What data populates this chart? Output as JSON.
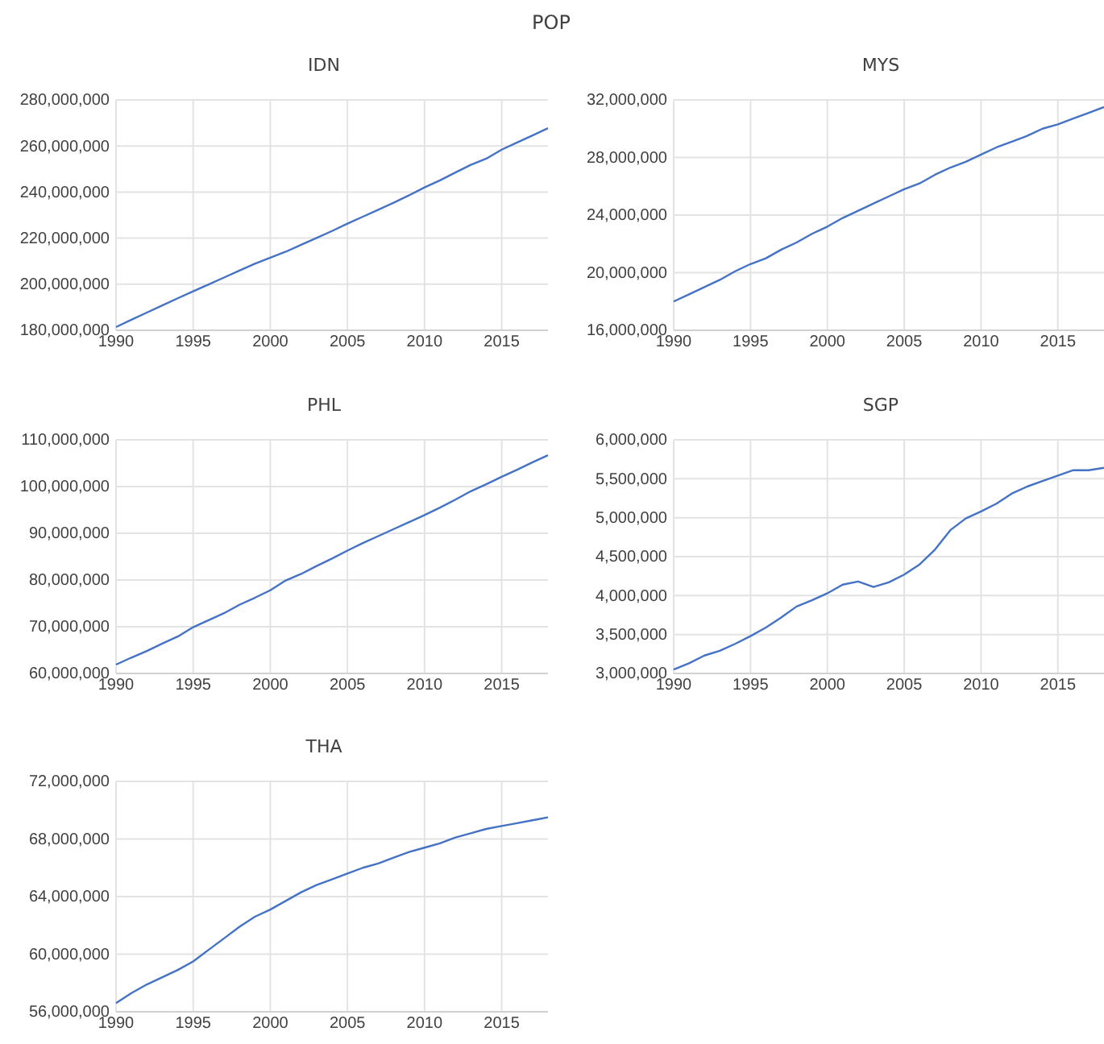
{
  "chart_data": [
    {
      "type": "other",
      "title": "POP"
    },
    {
      "type": "line",
      "title": "IDN",
      "x": [
        1990,
        1991,
        1992,
        1993,
        1994,
        1995,
        1996,
        1997,
        1998,
        1999,
        2000,
        2001,
        2002,
        2003,
        2004,
        2005,
        2006,
        2007,
        2008,
        2009,
        2010,
        2011,
        2012,
        2013,
        2014,
        2015,
        2016,
        2017,
        2018
      ],
      "xlim": [
        1990,
        2018
      ],
      "xticks": [
        1990,
        1995,
        2000,
        2005,
        2010,
        2015
      ],
      "ylim": [
        180000000,
        280000000
      ],
      "yticks": [
        {
          "value": 180000000,
          "label": "180,000,000"
        },
        {
          "value": 200000000,
          "label": "200,000,000"
        },
        {
          "value": 220000000,
          "label": "220,000,000"
        },
        {
          "value": 240000000,
          "label": "240,000,000"
        },
        {
          "value": 260000000,
          "label": "260,000,000"
        },
        {
          "value": 280000000,
          "label": "280,000,000"
        }
      ],
      "grid": true,
      "series": [
        {
          "color": "#4472c4",
          "values": [
            181400000,
            184600000,
            187700000,
            190800000,
            193900000,
            196900000,
            199900000,
            202900000,
            205900000,
            208900000,
            211500000,
            214100000,
            217100000,
            220100000,
            223100000,
            226300000,
            229300000,
            232300000,
            235400000,
            238600000,
            242000000,
            245100000,
            248500000,
            251800000,
            254500000,
            258400000,
            261500000,
            264600000,
            267700000
          ]
        }
      ]
    },
    {
      "type": "line",
      "title": "MYS",
      "x": [
        1990,
        1991,
        1992,
        1993,
        1994,
        1995,
        1996,
        1997,
        1998,
        1999,
        2000,
        2001,
        2002,
        2003,
        2004,
        2005,
        2006,
        2007,
        2008,
        2009,
        2010,
        2011,
        2012,
        2013,
        2014,
        2015,
        2016,
        2017,
        2018
      ],
      "xlim": [
        1990,
        2018
      ],
      "xticks": [
        1990,
        1995,
        2000,
        2005,
        2010,
        2015
      ],
      "ylim": [
        16000000,
        32000000
      ],
      "yticks": [
        {
          "value": 16000000,
          "label": "16,000,000"
        },
        {
          "value": 20000000,
          "label": "20,000,000"
        },
        {
          "value": 24000000,
          "label": "24,000,000"
        },
        {
          "value": 28000000,
          "label": "28,000,000"
        },
        {
          "value": 32000000,
          "label": "32,000,000"
        }
      ],
      "grid": true,
      "series": [
        {
          "color": "#4472c4",
          "values": [
            18000000,
            18500000,
            19000000,
            19500000,
            20100000,
            20600000,
            21000000,
            21600000,
            22100000,
            22700000,
            23200000,
            23800000,
            24300000,
            24800000,
            25300000,
            25800000,
            26200000,
            26800000,
            27300000,
            27700000,
            28200000,
            28700000,
            29100000,
            29500000,
            30000000,
            30300000,
            30700000,
            31100000,
            31500000
          ]
        }
      ]
    },
    {
      "type": "line",
      "title": "PHL",
      "x": [
        1990,
        1991,
        1992,
        1993,
        1994,
        1995,
        1996,
        1997,
        1998,
        1999,
        2000,
        2001,
        2002,
        2003,
        2004,
        2005,
        2006,
        2007,
        2008,
        2009,
        2010,
        2011,
        2012,
        2013,
        2014,
        2015,
        2016,
        2017,
        2018
      ],
      "xlim": [
        1990,
        2018
      ],
      "xticks": [
        1990,
        1995,
        2000,
        2005,
        2010,
        2015
      ],
      "ylim": [
        60000000,
        110000000
      ],
      "yticks": [
        {
          "value": 60000000,
          "label": "60,000,000"
        },
        {
          "value": 70000000,
          "label": "70,000,000"
        },
        {
          "value": 80000000,
          "label": "80,000,000"
        },
        {
          "value": 90000000,
          "label": "90,000,000"
        },
        {
          "value": 100000000,
          "label": "100,000,000"
        },
        {
          "value": 110000000,
          "label": "110,000,000"
        }
      ],
      "grid": true,
      "series": [
        {
          "color": "#4472c4",
          "values": [
            61900000,
            63400000,
            64800000,
            66400000,
            67900000,
            69900000,
            71400000,
            72900000,
            74700000,
            76200000,
            77800000,
            79900000,
            81300000,
            83000000,
            84600000,
            86300000,
            87900000,
            89400000,
            90900000,
            92400000,
            93900000,
            95500000,
            97200000,
            99000000,
            100500000,
            102100000,
            103600000,
            105200000,
            106700000
          ]
        }
      ]
    },
    {
      "type": "line",
      "title": "SGP",
      "x": [
        1990,
        1991,
        1992,
        1993,
        1994,
        1995,
        1996,
        1997,
        1998,
        1999,
        2000,
        2001,
        2002,
        2003,
        2004,
        2005,
        2006,
        2007,
        2008,
        2009,
        2010,
        2011,
        2012,
        2013,
        2014,
        2015,
        2016,
        2017,
        2018
      ],
      "xlim": [
        1990,
        2018
      ],
      "xticks": [
        1990,
        1995,
        2000,
        2005,
        2010,
        2015
      ],
      "ylim": [
        3000000,
        6000000
      ],
      "yticks": [
        {
          "value": 3000000,
          "label": "3,000,000"
        },
        {
          "value": 3500000,
          "label": "3,500,000"
        },
        {
          "value": 4000000,
          "label": "4,000,000"
        },
        {
          "value": 4500000,
          "label": "4,500,000"
        },
        {
          "value": 5000000,
          "label": "5,000,000"
        },
        {
          "value": 5500000,
          "label": "5,500,000"
        },
        {
          "value": 6000000,
          "label": "6,000,000"
        }
      ],
      "grid": true,
      "series": [
        {
          "color": "#4472c4",
          "values": [
            3050000,
            3130000,
            3230000,
            3290000,
            3380000,
            3480000,
            3590000,
            3720000,
            3860000,
            3940000,
            4030000,
            4140000,
            4180000,
            4110000,
            4170000,
            4270000,
            4400000,
            4590000,
            4840000,
            4990000,
            5080000,
            5180000,
            5310000,
            5400000,
            5470000,
            5540000,
            5610000,
            5610000,
            5640000
          ]
        }
      ]
    },
    {
      "type": "line",
      "title": "THA",
      "x": [
        1990,
        1991,
        1992,
        1993,
        1994,
        1995,
        1996,
        1997,
        1998,
        1999,
        2000,
        2001,
        2002,
        2003,
        2004,
        2005,
        2006,
        2007,
        2008,
        2009,
        2010,
        2011,
        2012,
        2013,
        2014,
        2015,
        2016,
        2017,
        2018
      ],
      "xlim": [
        1990,
        2018
      ],
      "xticks": [
        1990,
        1995,
        2000,
        2005,
        2010,
        2015
      ],
      "ylim": [
        56000000,
        72000000
      ],
      "yticks": [
        {
          "value": 56000000,
          "label": "56,000,000"
        },
        {
          "value": 60000000,
          "label": "60,000,000"
        },
        {
          "value": 64000000,
          "label": "64,000,000"
        },
        {
          "value": 68000000,
          "label": "68,000,000"
        },
        {
          "value": 72000000,
          "label": "72,000,000"
        }
      ],
      "grid": true,
      "series": [
        {
          "color": "#4472c4",
          "values": [
            56600000,
            57300000,
            57900000,
            58400000,
            58900000,
            59500000,
            60300000,
            61100000,
            61900000,
            62600000,
            63100000,
            63700000,
            64300000,
            64800000,
            65200000,
            65600000,
            66000000,
            66300000,
            66700000,
            67100000,
            67400000,
            67700000,
            68100000,
            68400000,
            68700000,
            68900000,
            69100000,
            69300000,
            69500000
          ]
        }
      ]
    }
  ]
}
